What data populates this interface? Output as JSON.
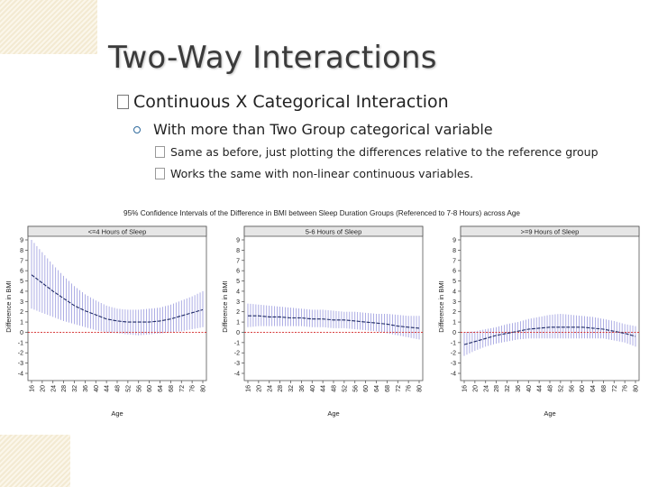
{
  "slide": {
    "title": "Two-Way Interactions",
    "bullet1": "Continuous X Categorical Interaction",
    "bullet2": "With more than Two Group categorical variable",
    "bullet3": "Same as before, just plotting the differences relative to the reference group",
    "bullet4": "Works the same with non-linear continuous variables."
  },
  "chart_data": {
    "type": "line",
    "title": "95% Confidence Intervals of the Difference in BMI between Sleep Duration Groups (Referenced to 7-8 Hours) across Age",
    "xlabel": "Age",
    "ylabel": "Difference in BMI",
    "ylim": [
      -4,
      9
    ],
    "x_ticks": [
      16,
      20,
      24,
      28,
      32,
      36,
      40,
      44,
      48,
      52,
      56,
      60,
      64,
      68,
      72,
      76,
      80
    ],
    "y_ticks": [
      9,
      8,
      7,
      6,
      5,
      4,
      3,
      2,
      1,
      0,
      -1,
      -2,
      -3,
      -4
    ],
    "reference_line": 0,
    "colors": {
      "ci_bar": "#7f7fd6",
      "estimate": "#1f2a66",
      "reference": "#d22222"
    },
    "panels": [
      {
        "title": "<=4 Hours of Sleep",
        "age": [
          16,
          20,
          24,
          28,
          32,
          36,
          40,
          44,
          48,
          52,
          56,
          60,
          64,
          68,
          72,
          76,
          80
        ],
        "estimate": [
          5.6,
          4.8,
          4.0,
          3.3,
          2.6,
          2.1,
          1.7,
          1.3,
          1.1,
          1.0,
          1.0,
          1.0,
          1.1,
          1.3,
          1.6,
          1.9,
          2.2
        ],
        "lower": [
          2.3,
          1.9,
          1.5,
          1.1,
          0.8,
          0.5,
          0.2,
          0.0,
          -0.1,
          -0.2,
          -0.3,
          -0.2,
          -0.1,
          0.0,
          0.1,
          0.3,
          0.5
        ],
        "upper": [
          9.0,
          7.8,
          6.6,
          5.5,
          4.5,
          3.7,
          3.1,
          2.6,
          2.3,
          2.2,
          2.2,
          2.3,
          2.4,
          2.7,
          3.1,
          3.5,
          4.0
        ]
      },
      {
        "title": "5-6 Hours of Sleep",
        "age": [
          16,
          20,
          24,
          28,
          32,
          36,
          40,
          44,
          48,
          52,
          56,
          60,
          64,
          68,
          72,
          76,
          80
        ],
        "estimate": [
          1.6,
          1.6,
          1.5,
          1.5,
          1.4,
          1.4,
          1.3,
          1.3,
          1.2,
          1.2,
          1.1,
          1.0,
          0.9,
          0.8,
          0.6,
          0.5,
          0.4
        ],
        "lower": [
          0.5,
          0.6,
          0.6,
          0.6,
          0.6,
          0.6,
          0.5,
          0.5,
          0.4,
          0.4,
          0.3,
          0.2,
          0.1,
          -0.1,
          -0.3,
          -0.5,
          -0.7
        ],
        "upper": [
          2.8,
          2.7,
          2.6,
          2.5,
          2.4,
          2.3,
          2.2,
          2.2,
          2.1,
          2.0,
          2.0,
          1.9,
          1.8,
          1.8,
          1.7,
          1.6,
          1.6
        ]
      },
      {
        "title": ">=9 Hours of Sleep",
        "age": [
          16,
          20,
          24,
          28,
          32,
          36,
          40,
          44,
          48,
          52,
          56,
          60,
          64,
          68,
          72,
          76,
          80
        ],
        "estimate": [
          -1.2,
          -0.9,
          -0.6,
          -0.3,
          -0.1,
          0.1,
          0.3,
          0.4,
          0.5,
          0.5,
          0.5,
          0.5,
          0.4,
          0.3,
          0.1,
          -0.1,
          -0.4
        ],
        "lower": [
          -2.3,
          -1.8,
          -1.4,
          -1.1,
          -0.9,
          -0.7,
          -0.6,
          -0.6,
          -0.6,
          -0.6,
          -0.6,
          -0.6,
          -0.6,
          -0.6,
          -0.8,
          -1.0,
          -1.4
        ],
        "upper": [
          0.0,
          0.1,
          0.3,
          0.5,
          0.8,
          1.0,
          1.3,
          1.5,
          1.7,
          1.8,
          1.7,
          1.6,
          1.5,
          1.3,
          1.1,
          0.8,
          0.6
        ]
      }
    ]
  }
}
